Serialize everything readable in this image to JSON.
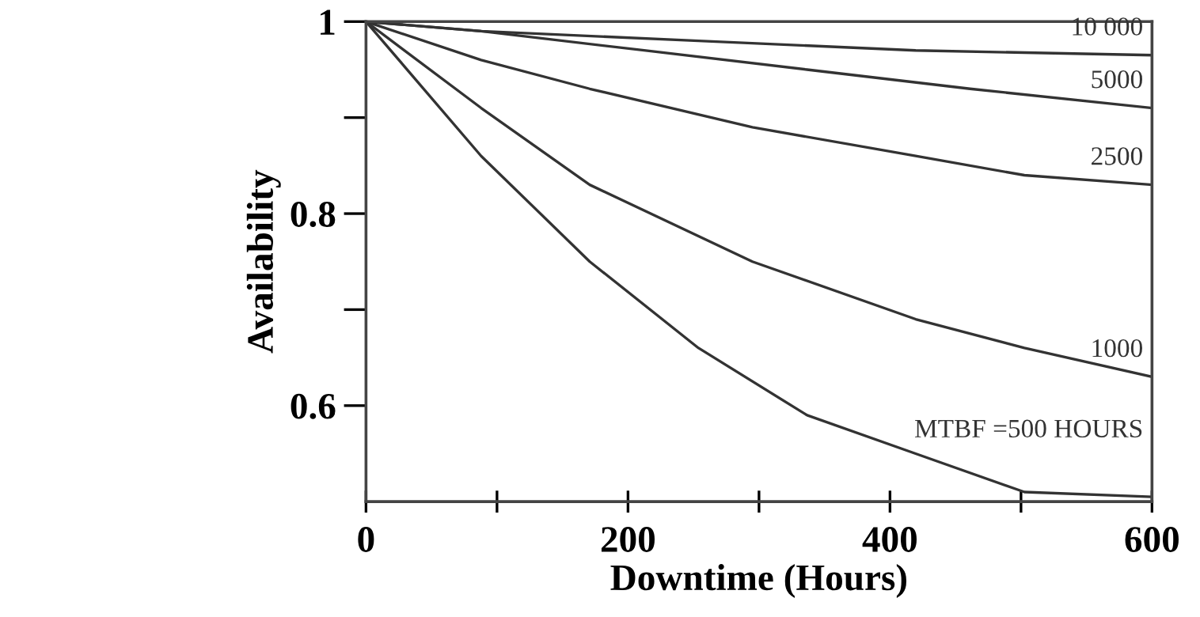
{
  "chart_data": {
    "type": "line",
    "xlabel": "Downtime (Hours)",
    "ylabel": "Availability",
    "xlim": [
      0,
      600
    ],
    "ylim": [
      0.5,
      1
    ],
    "xticks": [
      0,
      {
        "value": 100,
        "label": null
      },
      200,
      {
        "value": 300,
        "label": null
      },
      400,
      {
        "value": 500,
        "label": null
      },
      600
    ],
    "yticks": [
      1,
      {
        "value": 0.9,
        "label": null
      },
      0.8,
      {
        "value": 0.7,
        "label": null
      },
      0.6
    ],
    "grid": false,
    "legend": false,
    "marker": "none",
    "line_style": "solid",
    "series": [
      {
        "name": "10 000",
        "color": "#333333",
        "x": [
          0,
          87.9,
          253.8,
          419.6,
          600
        ],
        "values": [
          1.0,
          0.99,
          0.98,
          0.97,
          0.965
        ]
      },
      {
        "name": "5000",
        "color": "#333333",
        "x": [
          0,
          87.9,
          212.3,
          336.7,
          461.1,
          600
        ],
        "values": [
          1.0,
          0.99,
          0.97,
          0.95,
          0.93,
          0.91
        ]
      },
      {
        "name": "2500",
        "color": "#333333",
        "x": [
          0,
          87.9,
          170.8,
          295,
          419.6,
          502.6,
          600
        ],
        "values": [
          1.0,
          0.96,
          0.93,
          0.89,
          0.86,
          0.84,
          0.83
        ]
      },
      {
        "name": "1000",
        "color": "#333333",
        "x": [
          0,
          87.9,
          170.8,
          295,
          419.6,
          502.6,
          600
        ],
        "values": [
          1.0,
          0.91,
          0.83,
          0.75,
          0.69,
          0.66,
          0.63
        ]
      },
      {
        "name": "MTBF =500 HOURS",
        "color": "#333333",
        "x": [
          0,
          87.9,
          170.8,
          253.8,
          336.7,
          419.6,
          502.6,
          600
        ],
        "values": [
          1.0,
          0.86,
          0.75,
          0.66,
          0.59,
          0.55,
          0.51,
          0.505
        ]
      }
    ]
  }
}
